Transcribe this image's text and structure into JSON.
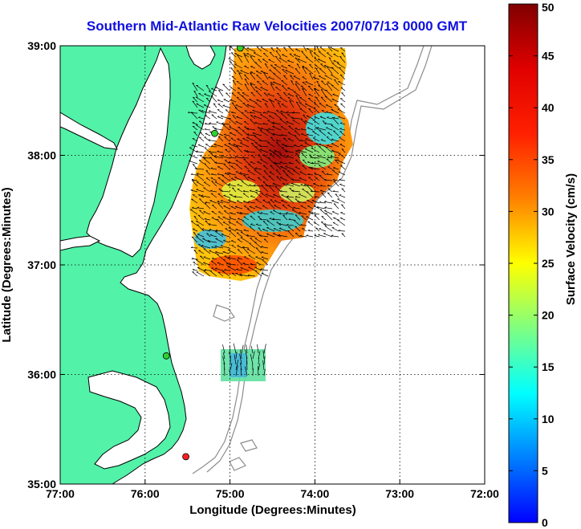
{
  "title": "Southern Mid-Atlantic Raw Velocities 2007/07/13 0000 GMT",
  "x_axis": {
    "label": "Longitude (Degrees:Minutes)",
    "range": [
      77,
      72
    ],
    "ticks": [
      {
        "value": 77,
        "label": "77:00"
      },
      {
        "value": 76,
        "label": "76:00"
      },
      {
        "value": 75,
        "label": "75:00"
      },
      {
        "value": 74,
        "label": "74:00"
      },
      {
        "value": 73,
        "label": "73:00"
      },
      {
        "value": 72,
        "label": "72:00"
      }
    ]
  },
  "y_axis": {
    "label": "Latitude (Degrees:Minutes)",
    "range": [
      35,
      39
    ],
    "ticks": [
      {
        "value": 39,
        "label": "39:00"
      },
      {
        "value": 38,
        "label": "38:00"
      },
      {
        "value": 37,
        "label": "37:00"
      },
      {
        "value": 36,
        "label": "36:00"
      },
      {
        "value": 35,
        "label": "35:00"
      }
    ]
  },
  "grid": true,
  "colorbar": {
    "label": "Surface Velocity (cm/s)",
    "range": [
      0,
      50
    ],
    "ticks": [
      "0",
      "5",
      "10",
      "15",
      "20",
      "25",
      "30",
      "35",
      "40",
      "45",
      "50"
    ]
  },
  "colors": {
    "land": "#52f2a8",
    "coast": "#000000",
    "bathymetry": "#8c8c8c",
    "title": "#1010e0",
    "station_active": "#30d030",
    "station_inactive": "#ff2020"
  },
  "stations": [
    {
      "lon": 74.88,
      "lat": 38.98,
      "status": "active"
    },
    {
      "lon": 75.18,
      "lat": 38.2,
      "status": "active"
    },
    {
      "lon": 75.75,
      "lat": 36.17,
      "status": "active"
    },
    {
      "lon": 75.52,
      "lat": 35.25,
      "status": "inactive"
    }
  ]
}
